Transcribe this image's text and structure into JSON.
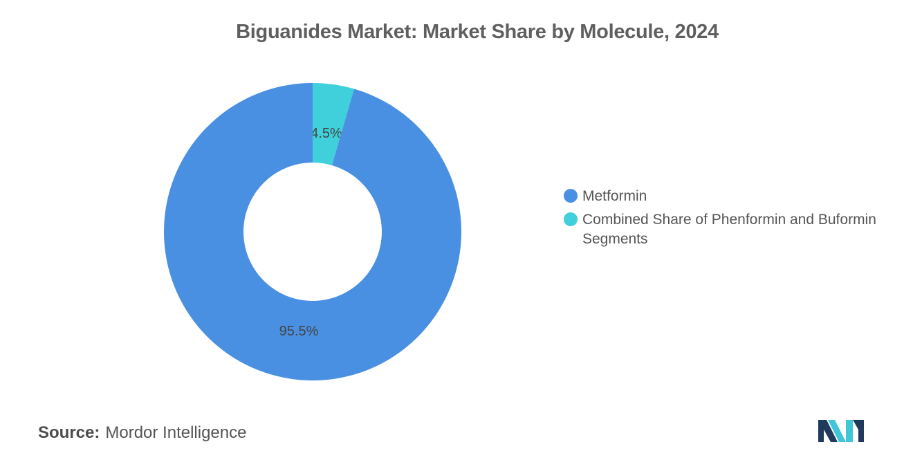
{
  "chart_data": {
    "type": "pie",
    "title": "Biguanides Market: Market Share by Molecule, 2024",
    "donut": true,
    "slices": [
      {
        "name": "Combined Share of Phenformin and Buformin Segments",
        "value": 4.5,
        "label": "4.5%",
        "color": "#40d0dc"
      },
      {
        "name": "Metformin",
        "value": 95.5,
        "label": "95.5%",
        "color": "#4a90e2"
      }
    ],
    "legend": {
      "placement": "right",
      "items": [
        {
          "name": "Metformin",
          "color": "#4a90e2"
        },
        {
          "name": "Combined Share of Phenformin and Buformin Segments",
          "color": "#40d0dc"
        }
      ]
    }
  },
  "source": {
    "label": "Source:",
    "text": "Mordor Intelligence"
  },
  "logo": {
    "icon": "mordor-intelligence-logo",
    "colors": [
      "#1f3a5c",
      "#40c6d6"
    ]
  }
}
